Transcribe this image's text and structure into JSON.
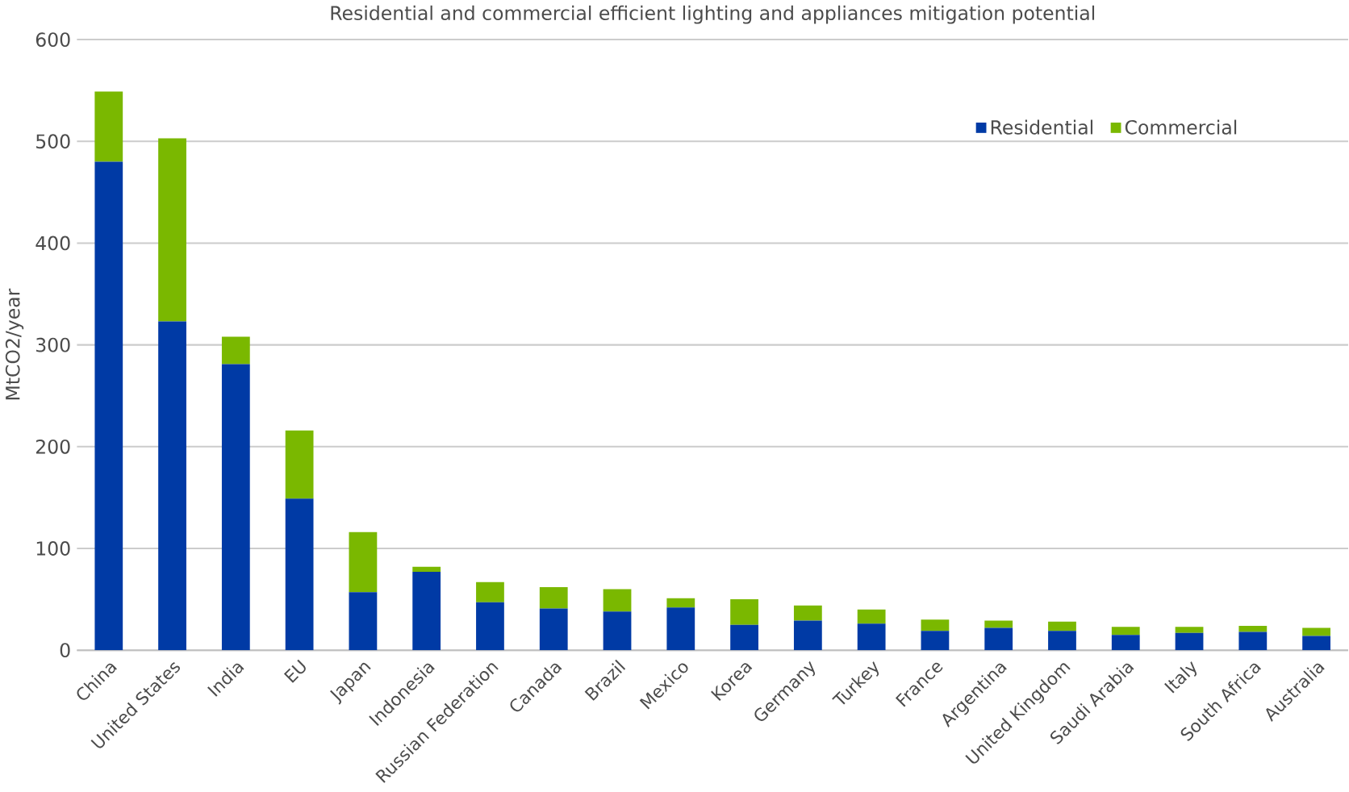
{
  "chart_data": {
    "type": "bar",
    "title": "Residential and commercial efficient lighting and appliances mitigation potential",
    "ylabel": "MtCO2/year",
    "categories": [
      "China",
      "United States",
      "India",
      "EU",
      "Japan",
      "Indonesia",
      "Russian Federation",
      "Canada",
      "Brazil",
      "Mexico",
      "Korea",
      "Germany",
      "Turkey",
      "France",
      "Argentina",
      "United Kingdom",
      "Saudi Arabia",
      "Italy",
      "South Africa",
      "Australia"
    ],
    "series": [
      {
        "name": "Residential",
        "color": "#003aa5",
        "values": [
          480,
          323,
          281,
          149,
          57,
          77,
          47,
          41,
          38,
          42,
          25,
          29,
          26,
          19,
          22,
          19,
          15,
          17,
          18,
          14
        ]
      },
      {
        "name": "Commercial",
        "color": "#7ab800",
        "values": [
          69,
          180,
          27,
          67,
          59,
          5,
          20,
          21,
          22,
          9,
          25,
          15,
          14,
          11,
          7,
          9,
          8,
          6,
          6,
          8
        ]
      }
    ],
    "stacked": true,
    "ylim": [
      0,
      600
    ],
    "yticks": [
      0,
      100,
      200,
      300,
      400,
      500,
      600
    ],
    "grid": "y",
    "legend": "top right"
  }
}
